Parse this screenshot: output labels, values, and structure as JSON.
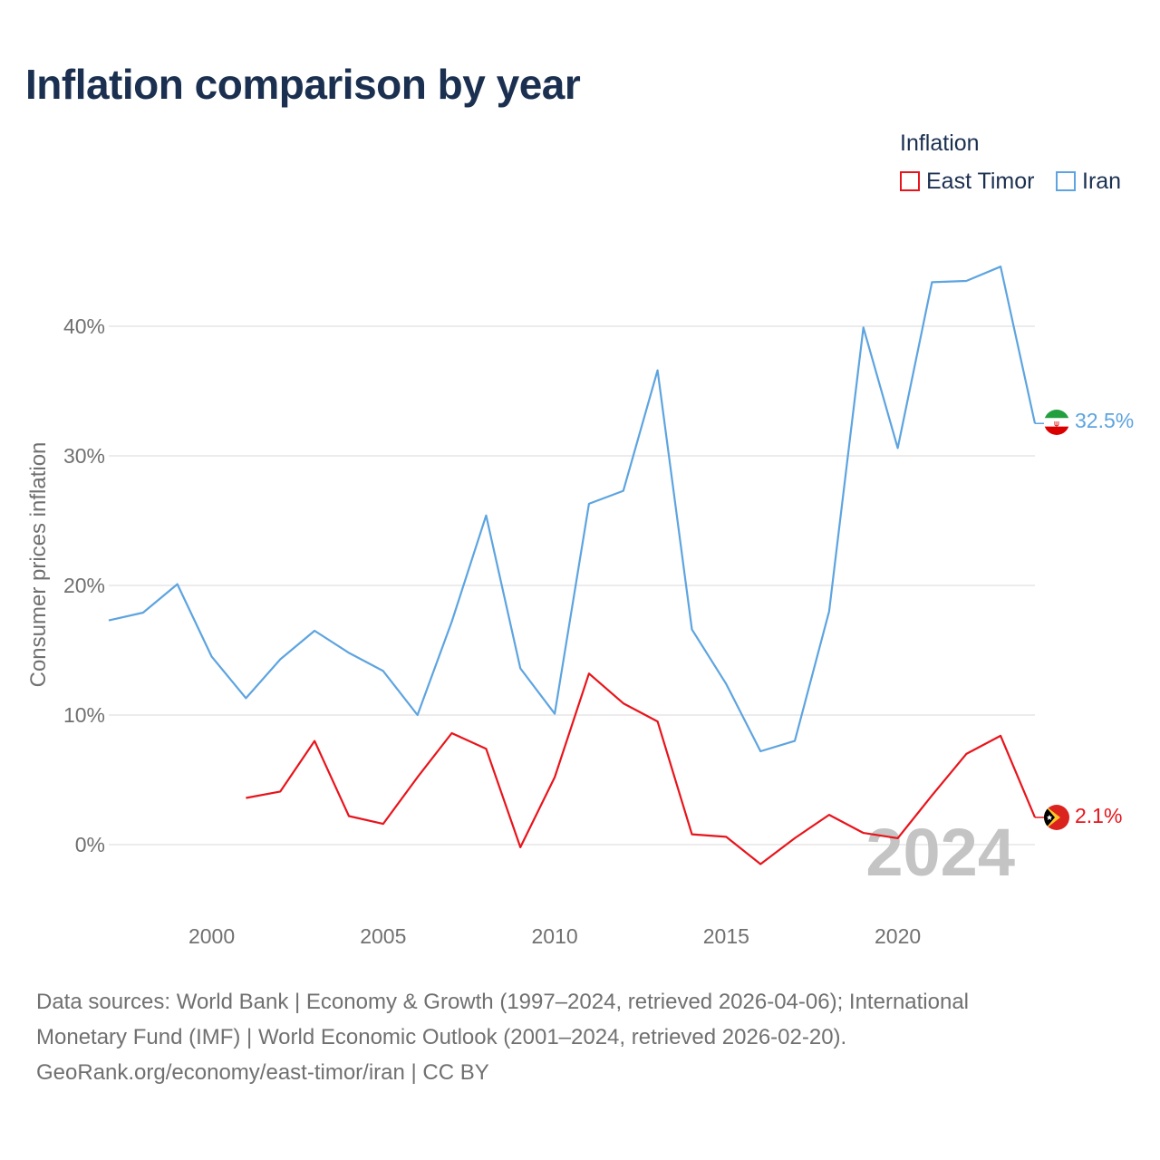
{
  "title": "Inflation comparison by year",
  "legend": {
    "title": "Inflation",
    "items": [
      "East Timor",
      "Iran"
    ]
  },
  "colors": {
    "east_timor": "#e8141b",
    "iran": "#5da4e0",
    "watermark": "#c4c4c4"
  },
  "year_watermark": "2024",
  "end_labels": {
    "iran": "32.5%",
    "east_timor": "2.1%"
  },
  "flags": [
    "iran-flag-icon",
    "east-timor-flag-icon"
  ],
  "footer": {
    "line1": "Data sources: World Bank | Economy & Growth (1997–2024, retrieved 2026-04-06); International",
    "line2": "Monetary Fund (IMF) | World Economic Outlook (2001–2024, retrieved 2026-02-20).",
    "line3": "GeoRank.org/economy/east-timor/iran | CC BY"
  },
  "chart_data": {
    "type": "line",
    "title": "Inflation comparison by year",
    "xlabel": "",
    "ylabel": "Consumer prices inflation",
    "xlim": [
      1997,
      2024
    ],
    "ylim": [
      -5,
      45
    ],
    "yticks": [
      0,
      10,
      20,
      30,
      40
    ],
    "ytick_labels": [
      "0%",
      "10%",
      "20%",
      "30%",
      "40%"
    ],
    "xticks": [
      2000,
      2005,
      2010,
      2015,
      2020
    ],
    "xtick_labels": [
      "2000",
      "2005",
      "2010",
      "2015",
      "2020"
    ],
    "grid": true,
    "legend_position": "top-right",
    "series": [
      {
        "name": "East Timor",
        "color": "#e8141b",
        "x": [
          2001,
          2002,
          2003,
          2004,
          2005,
          2006,
          2007,
          2008,
          2009,
          2010,
          2011,
          2012,
          2013,
          2014,
          2015,
          2016,
          2017,
          2018,
          2019,
          2020,
          2021,
          2022,
          2023,
          2024
        ],
        "values": [
          3.6,
          4.1,
          8.0,
          2.2,
          1.6,
          5.2,
          8.6,
          7.4,
          -0.2,
          5.2,
          13.2,
          10.9,
          9.5,
          0.8,
          0.6,
          -1.5,
          0.5,
          2.3,
          0.9,
          0.5,
          3.8,
          7.0,
          8.4,
          2.1
        ]
      },
      {
        "name": "Iran",
        "color": "#5da4e0",
        "x": [
          1997,
          1998,
          1999,
          2000,
          2001,
          2002,
          2003,
          2004,
          2005,
          2006,
          2007,
          2008,
          2009,
          2010,
          2011,
          2012,
          2013,
          2014,
          2015,
          2016,
          2017,
          2018,
          2019,
          2020,
          2021,
          2022,
          2023,
          2024
        ],
        "values": [
          17.3,
          17.9,
          20.1,
          14.5,
          11.3,
          14.3,
          16.5,
          14.8,
          13.4,
          10.0,
          17.2,
          25.4,
          13.6,
          10.1,
          26.3,
          27.3,
          36.6,
          16.6,
          12.4,
          7.2,
          8.0,
          18.0,
          39.9,
          30.6,
          43.4,
          43.5,
          44.6,
          32.5
        ]
      }
    ]
  }
}
